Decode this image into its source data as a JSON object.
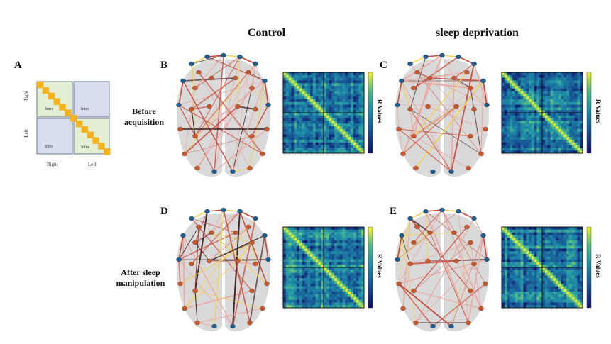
{
  "column_titles": {
    "control": "Control",
    "sleep_deprivation": "sleep deprivation"
  },
  "row_labels": {
    "before": "Before acquisition",
    "after": "After sleep manipulation"
  },
  "panel_letters": {
    "a": "A",
    "b": "B",
    "c": "C",
    "d": "D",
    "e": "E"
  },
  "schematic": {
    "y_labels": [
      "Right",
      "Left"
    ],
    "x_labels": [
      "Right",
      "Left"
    ],
    "quadrants": {
      "top_left": "Intra",
      "top_right": "Inter",
      "bottom_left": "Inter",
      "bottom_right": "Intra"
    },
    "colors": {
      "intra": "#e2efd5",
      "inter": "#d8deef",
      "diagonal": "#f5b21c",
      "border": "#6b7a8f"
    }
  },
  "matrix_colorbar_label": "R Values",
  "colors": {
    "node_blue": "#1d5e94",
    "node_orange": "#c8572a",
    "brain": "#d9d9d9",
    "edge_dark": "#3a1f1f",
    "edge_red": "#c84a3a",
    "edge_pink": "#e9a7a0",
    "edge_yellow": "#f0d25a"
  }
}
